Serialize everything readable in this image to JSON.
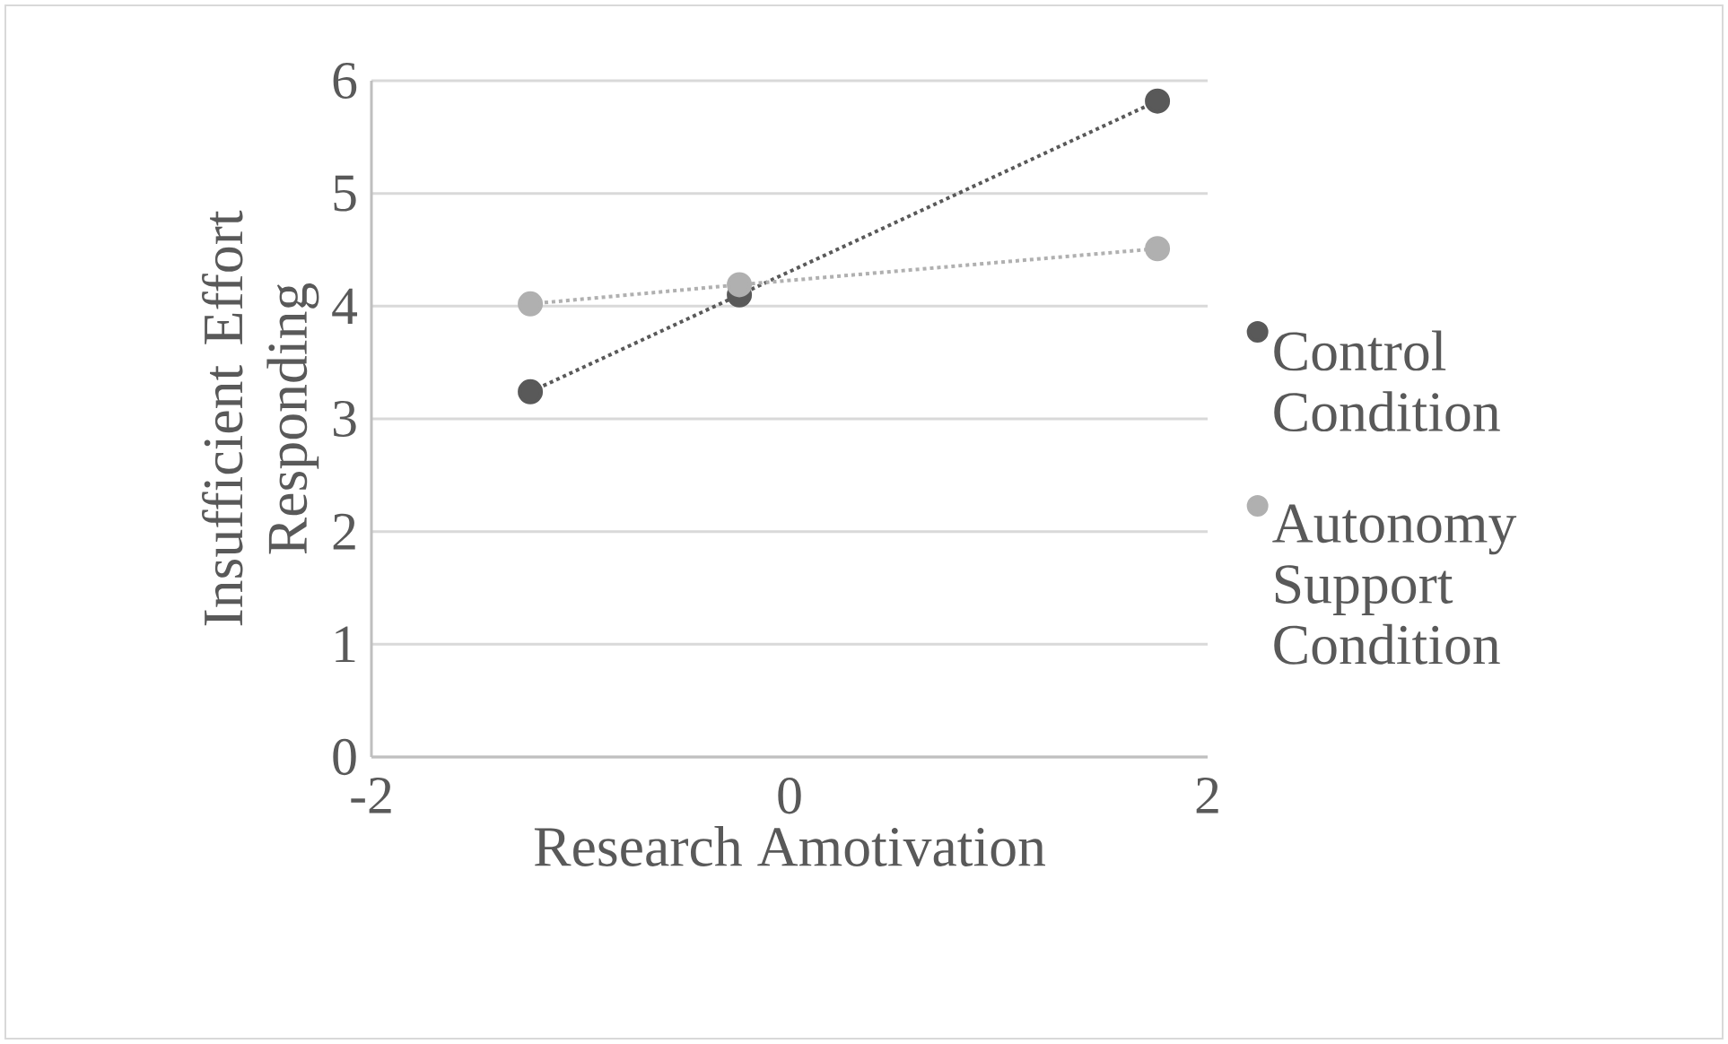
{
  "chart_data": {
    "type": "line",
    "xlabel": "Research Amotivation",
    "ylabel": "Insufficient Effort Responding",
    "xlim": [
      -2,
      2
    ],
    "xticks": [
      -2,
      0,
      2
    ],
    "ylim": [
      0,
      6
    ],
    "yticks": [
      0,
      1,
      2,
      3,
      4,
      5,
      6
    ],
    "x": [
      -1.24,
      -0.24,
      1.76
    ],
    "series": [
      {
        "name": "Control Condition",
        "color": "#595959",
        "values": [
          3.24,
          4.1,
          5.82
        ]
      },
      {
        "name": "Autonomy Support Condition",
        "color": "#b0b0b0",
        "values": [
          4.02,
          4.19,
          4.51
        ]
      }
    ],
    "grid": "y",
    "legend": "right",
    "marker": "circle",
    "line_style": "dotted"
  }
}
